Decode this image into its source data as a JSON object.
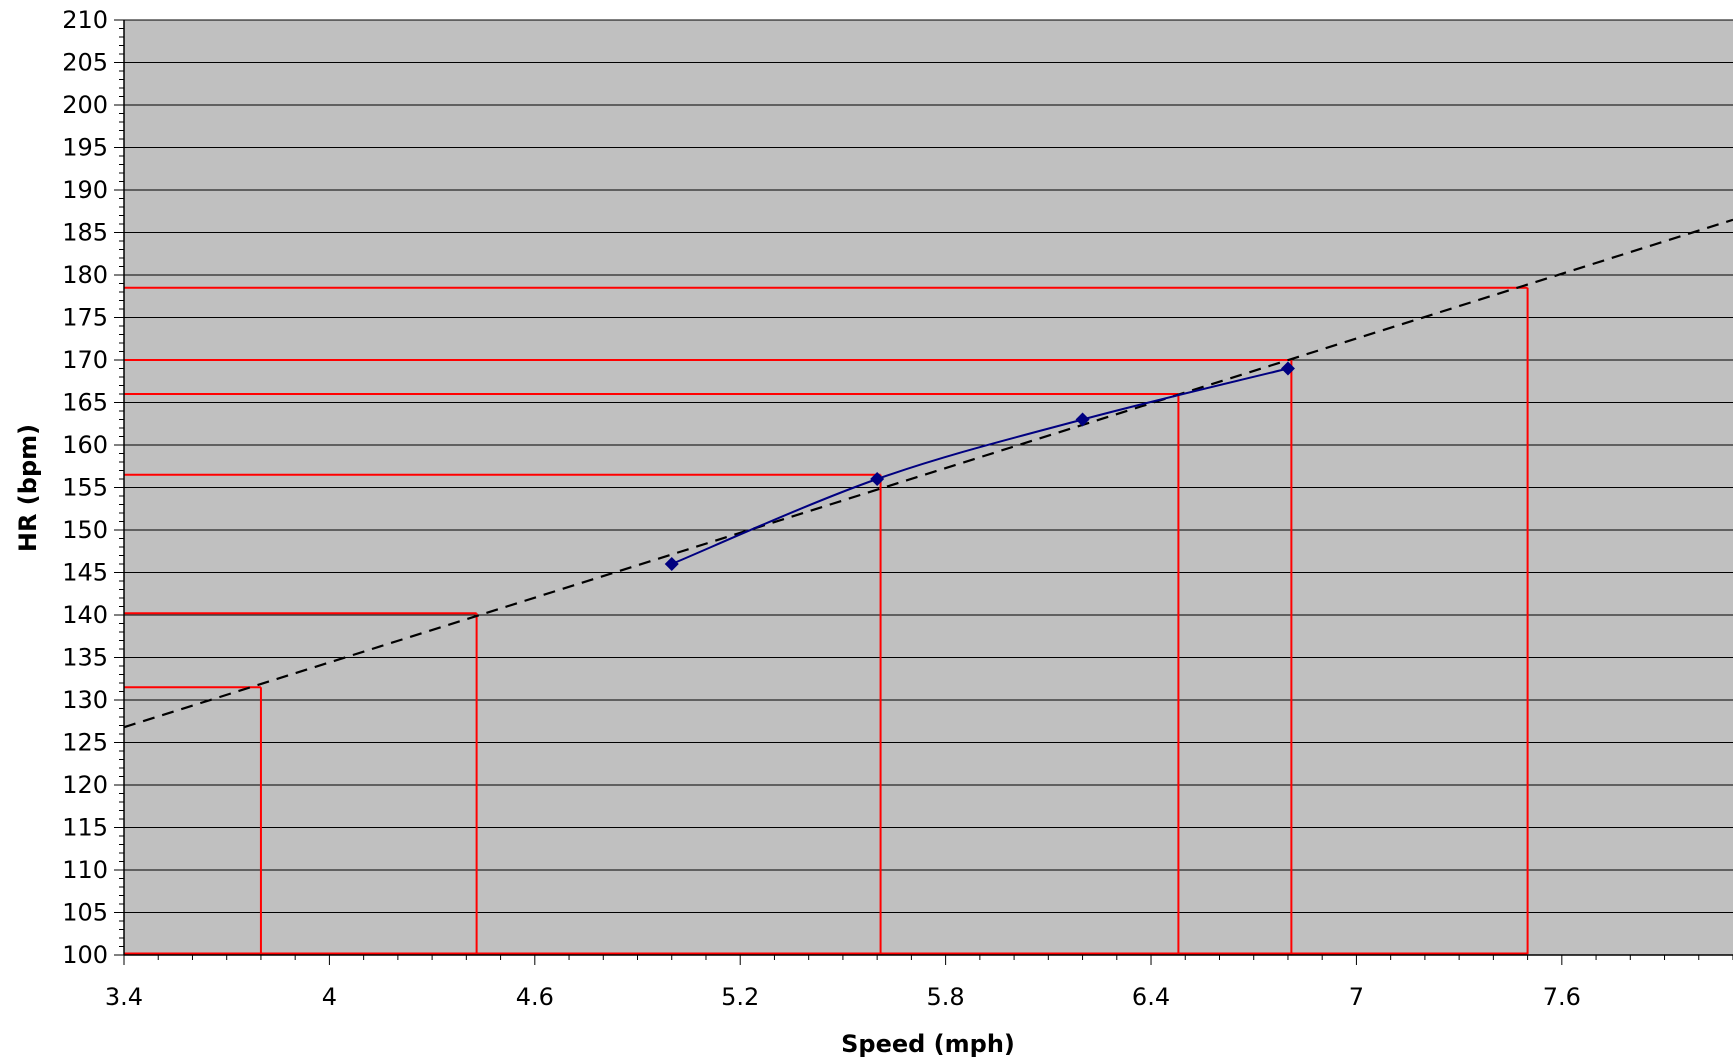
{
  "chart_data": {
    "type": "line",
    "xlabel": "Speed (mph)",
    "ylabel": "HR (bpm)",
    "xlim": [
      3.4,
      8.1
    ],
    "ylim": [
      100,
      210
    ],
    "x_ticks": [
      3.4,
      4,
      4.6,
      5.2,
      5.8,
      6.4,
      7,
      7.6
    ],
    "x_tick_labels": [
      "3.4",
      "4",
      "4.6",
      "5.2",
      "5.8",
      "6.4",
      "7",
      "7.6"
    ],
    "x_minor_step": 0.1,
    "y_ticks": [
      100,
      105,
      110,
      115,
      120,
      125,
      130,
      135,
      140,
      145,
      150,
      155,
      160,
      165,
      170,
      175,
      180,
      185,
      190,
      195,
      200,
      205,
      210
    ],
    "y_tick_labels": [
      "100",
      "105",
      "110",
      "115",
      "120",
      "125",
      "130",
      "135",
      "140",
      "145",
      "150",
      "155",
      "160",
      "165",
      "170",
      "175",
      "180",
      "185",
      "190",
      "195",
      "200",
      "205",
      "210"
    ],
    "y_minor_step": 1,
    "grid": true,
    "colors": {
      "plot_background": "#c0c0c0",
      "gridline": "#000000",
      "series": "#000080",
      "trendline": "#000000",
      "guides": "#ff0000"
    },
    "series": [
      {
        "x": [
          5.0,
          5.6,
          6.2,
          6.8
        ],
        "y": [
          146,
          156,
          163,
          169
        ],
        "marker": "diamond",
        "smooth": true
      }
    ],
    "trendline": {
      "style": "dashed",
      "x": [
        3.4,
        8.1
      ],
      "y": [
        126.8,
        186.5
      ]
    },
    "guide_lines": [
      {
        "x": 3.8,
        "y": 131.5
      },
      {
        "x": 4.43,
        "y": 140.2
      },
      {
        "x": 5.61,
        "y": 156.5
      },
      {
        "x": 6.48,
        "y": 166.0
      },
      {
        "x": 6.81,
        "y": 170.0
      },
      {
        "x": 7.5,
        "y": 178.5
      }
    ]
  }
}
